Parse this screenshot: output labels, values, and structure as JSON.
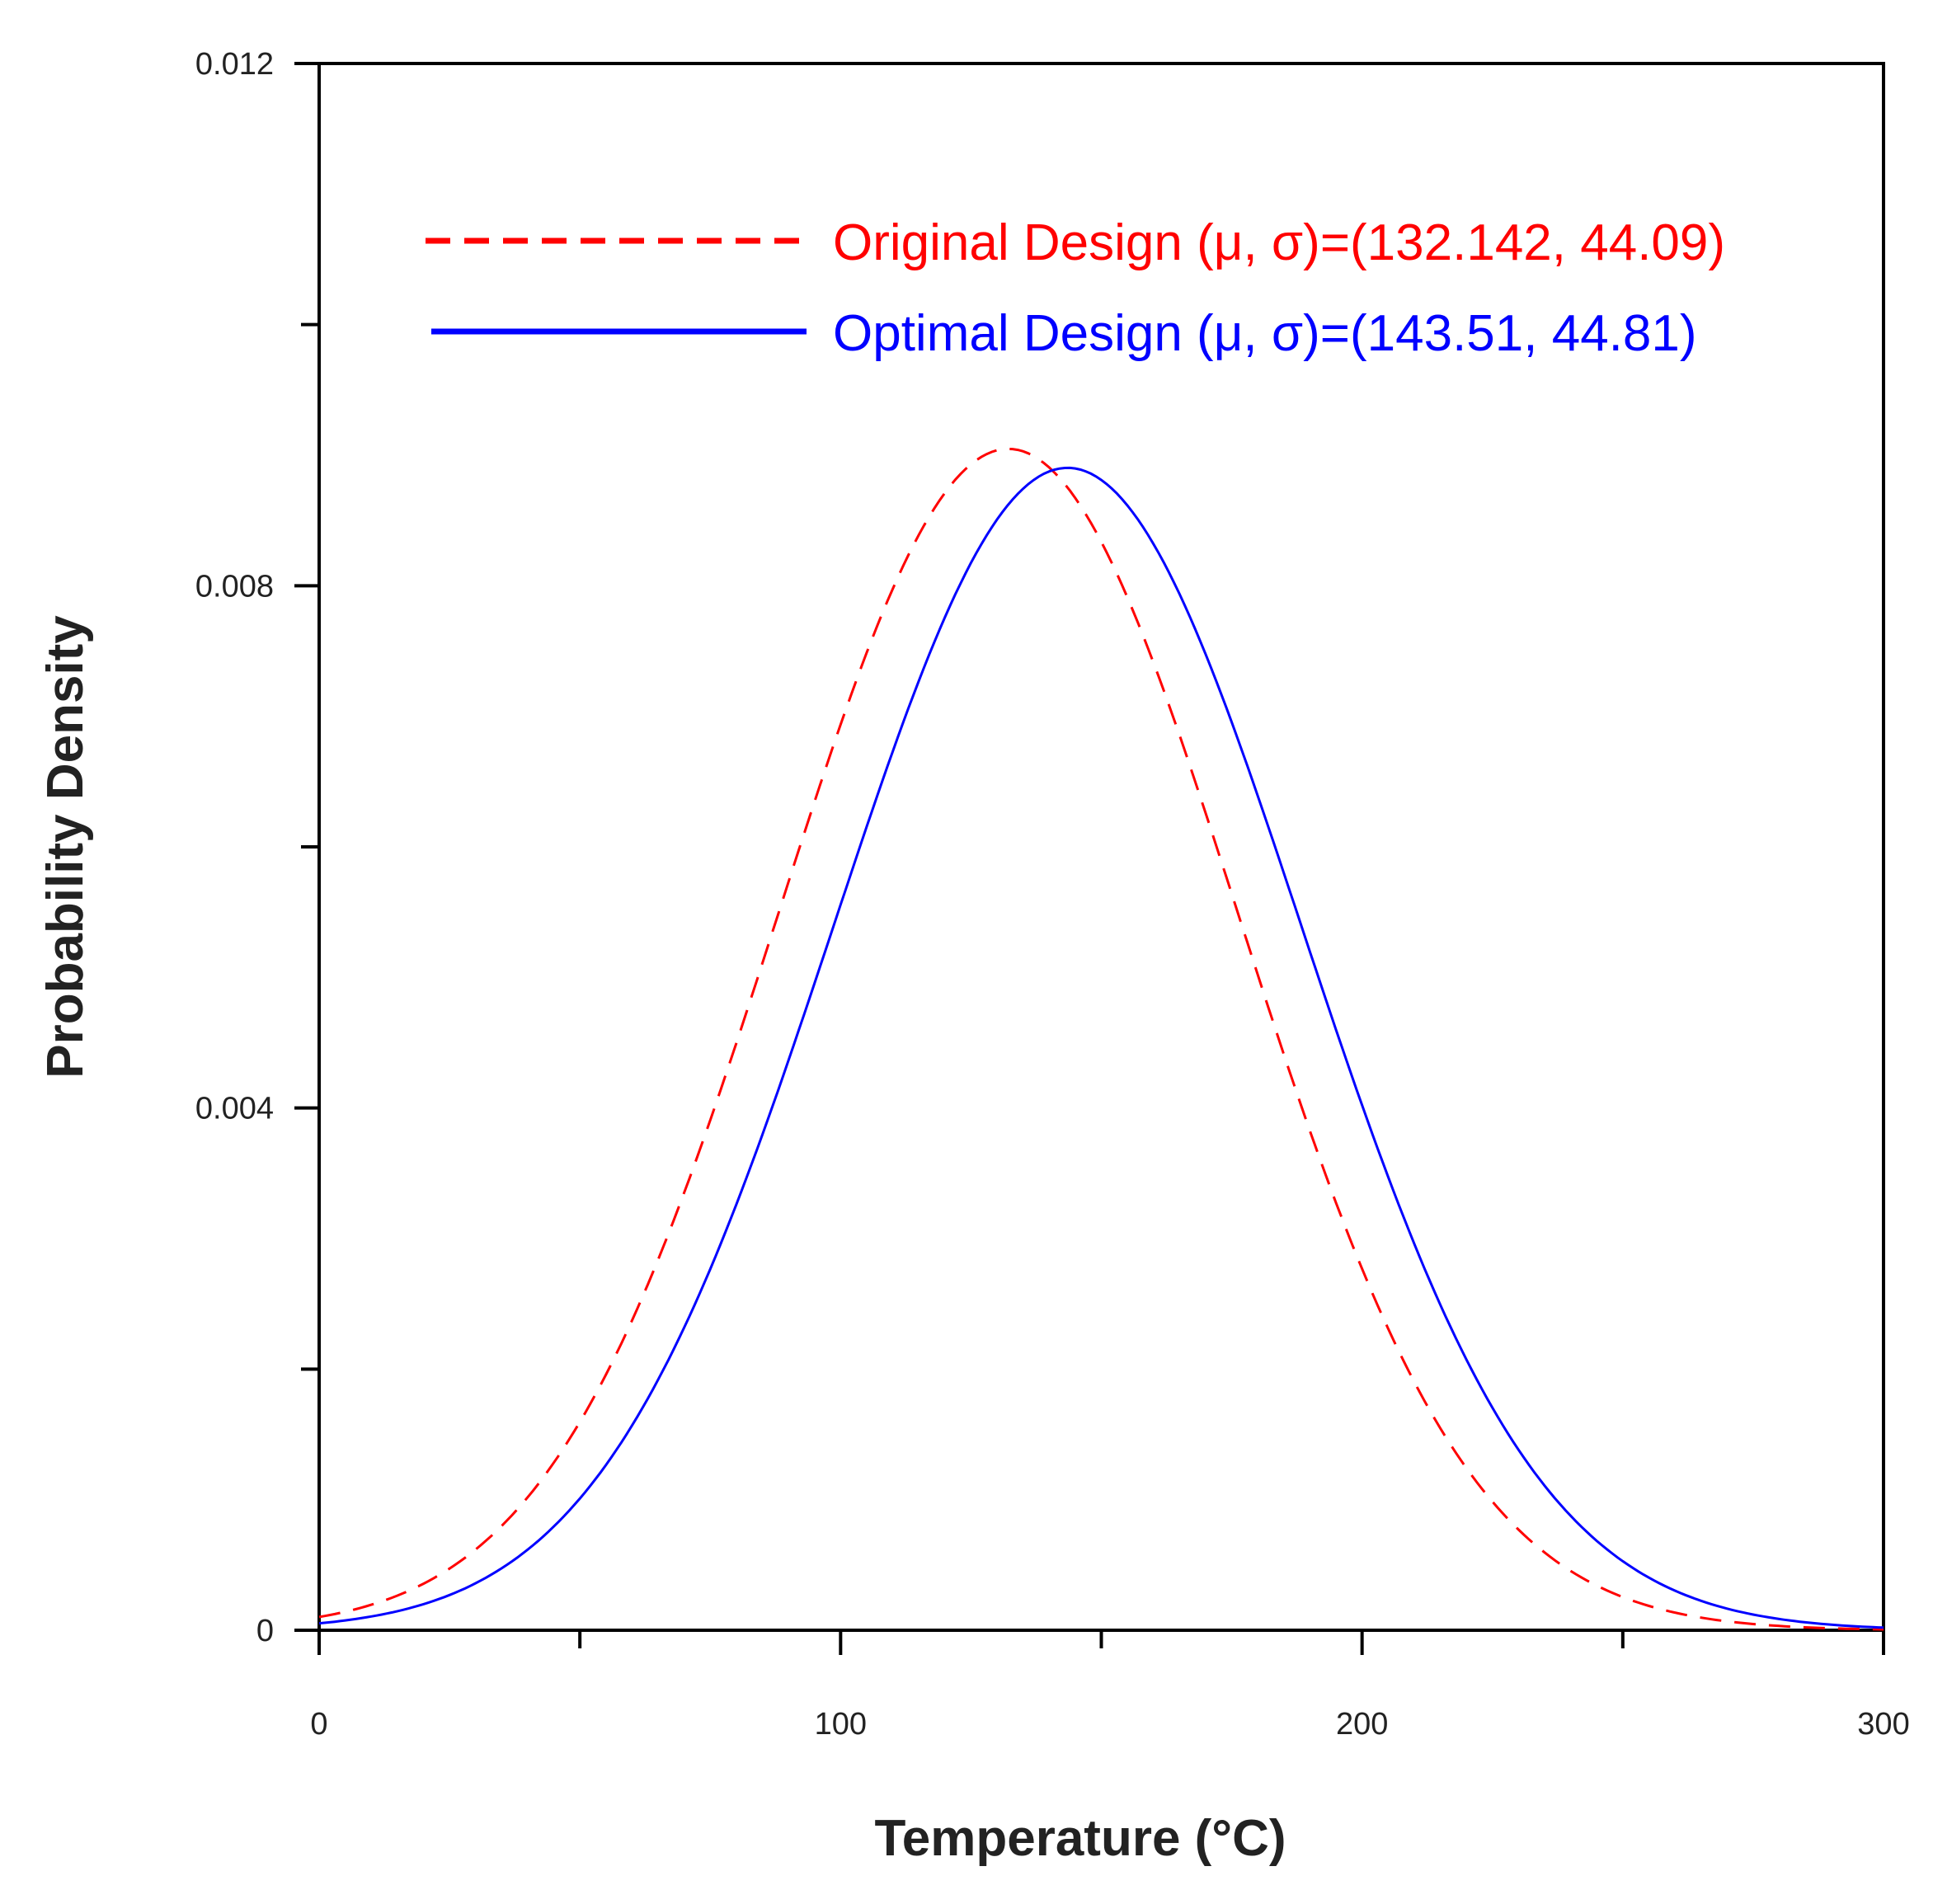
{
  "chart_data": {
    "type": "line",
    "title": "",
    "xlabel": "Temperature (°C)",
    "ylabel": "Probability Density",
    "xlim": [
      0,
      300
    ],
    "ylim": [
      0,
      0.012
    ],
    "x_major_ticks": [
      0,
      100,
      200,
      300
    ],
    "x_minor_ticks": [
      50,
      150,
      250
    ],
    "x_tick_labels": [
      "0",
      "100",
      "200",
      "300"
    ],
    "y_major_ticks": [
      0,
      0.004,
      0.008,
      0.012
    ],
    "y_minor_ticks": [
      0.002,
      0.006,
      0.01
    ],
    "y_tick_labels": [
      "0",
      "0.004",
      "0.008",
      "0.012"
    ],
    "grid": false,
    "legend_position": "top-right",
    "series": [
      {
        "name": "Original Design (μ, σ)=(132.142, 44.09)",
        "distribution": "normal",
        "mu": 132.142,
        "sigma": 44.09,
        "color": "#ff0000",
        "style": "dashed"
      },
      {
        "name": "Optimal Design (μ, σ)=(143.51, 44.81)",
        "distribution": "normal",
        "mu": 143.51,
        "sigma": 44.81,
        "color": "#0000ff",
        "style": "solid"
      }
    ]
  }
}
